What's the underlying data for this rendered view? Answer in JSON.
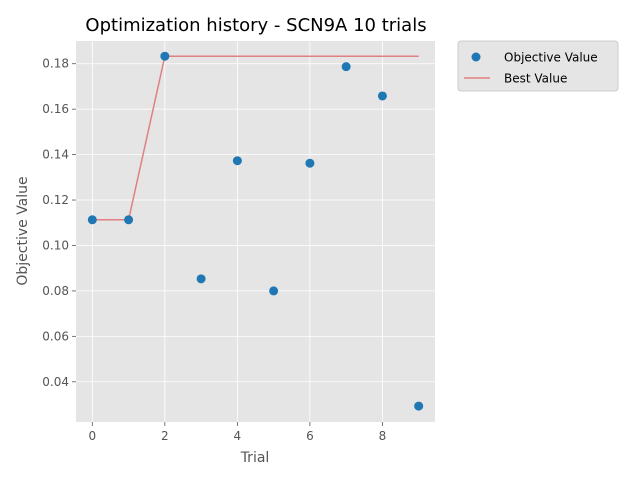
{
  "chart_data": {
    "type": "scatter",
    "title": "Optimization history - SCN9A 10 trials",
    "xlabel": "Trial",
    "ylabel": "Objective Value",
    "xlim": [
      -0.45,
      9.45
    ],
    "ylim": [
      0.0223,
      0.19
    ],
    "x_ticks": [
      0,
      2,
      4,
      6,
      8
    ],
    "y_ticks": [
      0.04,
      0.06,
      0.08,
      0.1,
      0.12,
      0.14,
      0.16,
      0.18
    ],
    "x_tick_labels": [
      "0",
      "2",
      "4",
      "6",
      "8"
    ],
    "y_tick_labels": [
      "0.04",
      "0.06",
      "0.08",
      "0.10",
      "0.12",
      "0.14",
      "0.16",
      "0.18"
    ],
    "grid": true,
    "legend_position": "outside-top-right",
    "series": [
      {
        "name": "Objective Value",
        "kind": "scatter",
        "color": "#1f77b4",
        "x": [
          0,
          1,
          2,
          3,
          4,
          5,
          6,
          7,
          8,
          9
        ],
        "y": [
          0.1113,
          0.1113,
          0.1833,
          0.0853,
          0.1373,
          0.08,
          0.1362,
          0.1787,
          0.1658,
          0.0293
        ]
      },
      {
        "name": "Best Value",
        "kind": "line",
        "color": "#e08080",
        "x": [
          0,
          1,
          2,
          3,
          4,
          5,
          6,
          7,
          8,
          9
        ],
        "y": [
          0.1113,
          0.1113,
          0.1833,
          0.1833,
          0.1833,
          0.1833,
          0.1833,
          0.1833,
          0.1833,
          0.1833
        ]
      }
    ]
  },
  "colors": {
    "plot_background": "#e5e5e5",
    "grid": "#ffffff",
    "legend_background": "#e5e5e5",
    "legend_border": "#cccccc"
  }
}
